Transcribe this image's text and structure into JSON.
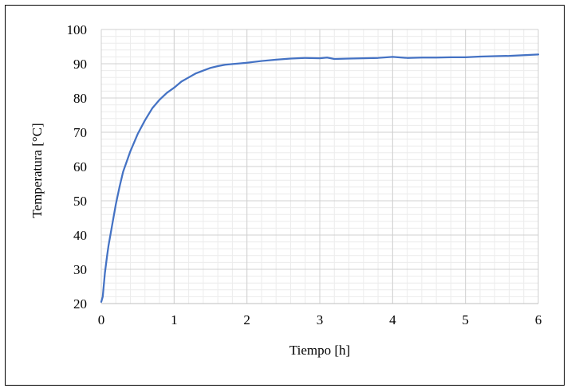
{
  "chart_data": {
    "type": "line",
    "title": "",
    "xlabel": "Tiempo [h]",
    "ylabel": "Temperatura [°C]",
    "xlim": [
      0,
      6
    ],
    "ylim": [
      20,
      100
    ],
    "x_ticks": [
      "0",
      "1",
      "2",
      "3",
      "4",
      "5",
      "6"
    ],
    "y_ticks": [
      "20",
      "30",
      "40",
      "50",
      "60",
      "70",
      "80",
      "90",
      "100"
    ],
    "grid": true,
    "legend": "none",
    "series": [
      {
        "color": "#4472C4",
        "x": [
          0,
          0.02,
          0.05,
          0.08,
          0.1,
          0.15,
          0.2,
          0.25,
          0.3,
          0.4,
          0.5,
          0.6,
          0.7,
          0.8,
          0.9,
          1.0,
          1.1,
          1.2,
          1.3,
          1.4,
          1.5,
          1.6,
          1.7,
          1.8,
          1.9,
          2.0,
          2.2,
          2.4,
          2.6,
          2.8,
          3.0,
          3.1,
          3.2,
          3.4,
          3.6,
          3.8,
          4.0,
          4.2,
          4.4,
          4.6,
          4.8,
          5.0,
          5.2,
          5.4,
          5.6,
          5.8,
          6.0
        ],
        "y": [
          20.5,
          22,
          29,
          34,
          37,
          43,
          49,
          54,
          58.5,
          64.5,
          69.5,
          73.5,
          77,
          79.5,
          81.5,
          83,
          84.8,
          86,
          87.2,
          88,
          88.8,
          89.3,
          89.7,
          89.9,
          90.1,
          90.3,
          90.8,
          91.2,
          91.5,
          91.7,
          91.6,
          91.8,
          91.4,
          91.5,
          91.6,
          91.7,
          92.0,
          91.7,
          91.8,
          91.8,
          91.9,
          91.9,
          92.1,
          92.2,
          92.3,
          92.5,
          92.7
        ]
      }
    ]
  }
}
